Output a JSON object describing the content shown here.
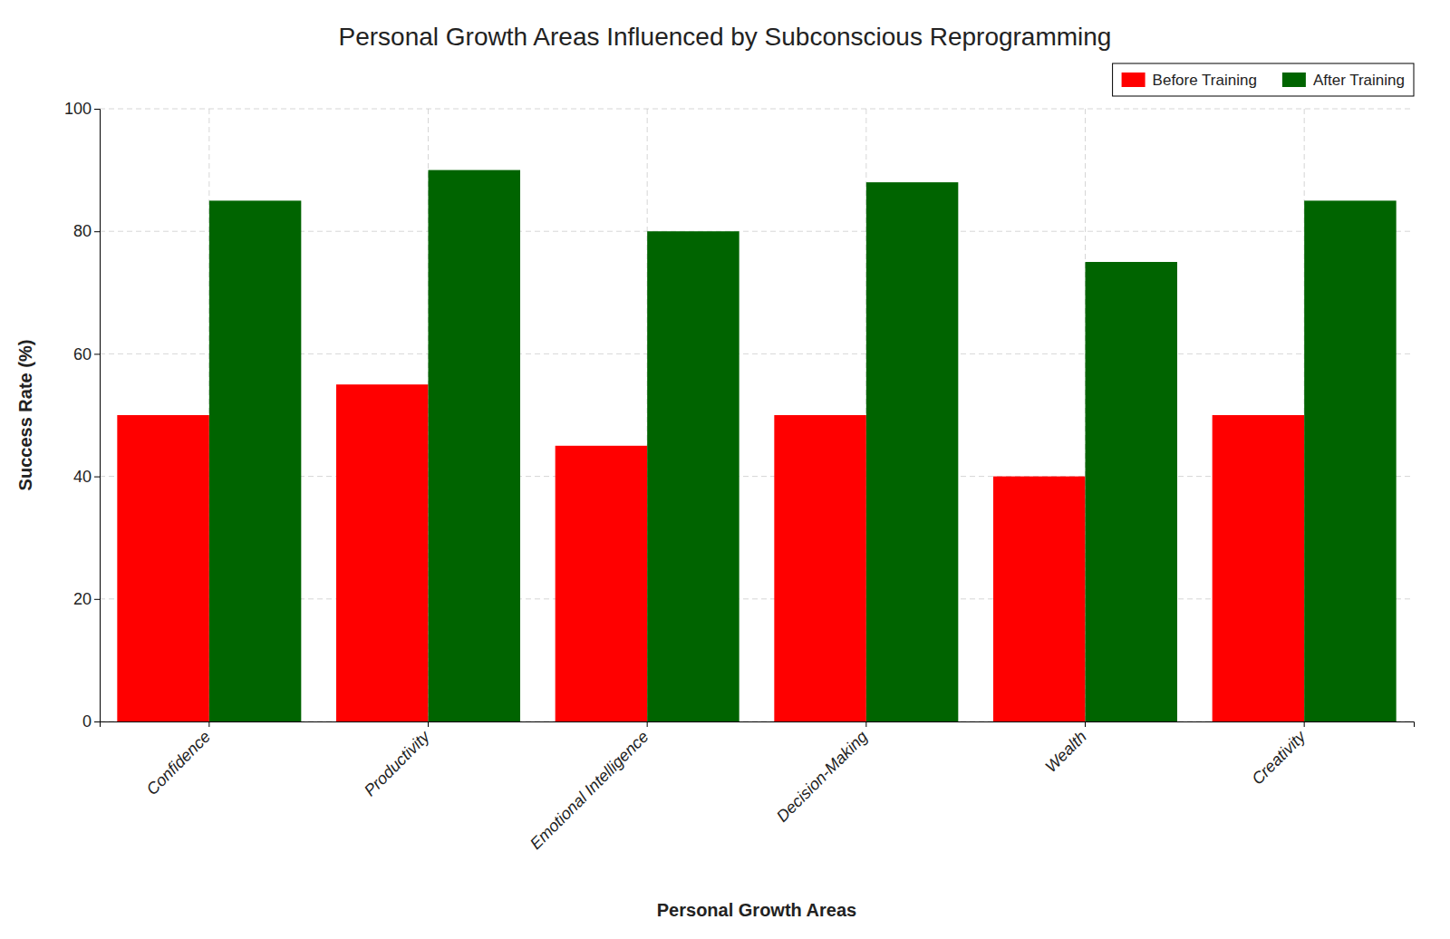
{
  "chart_data": {
    "type": "bar",
    "title": "Personal Growth Areas Influenced by Subconscious Reprogramming",
    "xlabel": "Personal Growth Areas",
    "ylabel": "Success Rate (%)",
    "categories": [
      "Confidence",
      "Productivity",
      "Emotional Intelligence",
      "Decision-Making",
      "Wealth",
      "Creativity"
    ],
    "series": [
      {
        "name": "Before Training",
        "color": "#ff0000",
        "values": [
          50,
          55,
          45,
          50,
          40,
          50
        ]
      },
      {
        "name": "After Training",
        "color": "#006400",
        "values": [
          85,
          90,
          80,
          88,
          75,
          85
        ]
      }
    ],
    "ylim": [
      0,
      100
    ],
    "yticks": [
      0,
      20,
      40,
      60,
      80,
      100
    ],
    "grid": true,
    "legend": "upper right"
  }
}
